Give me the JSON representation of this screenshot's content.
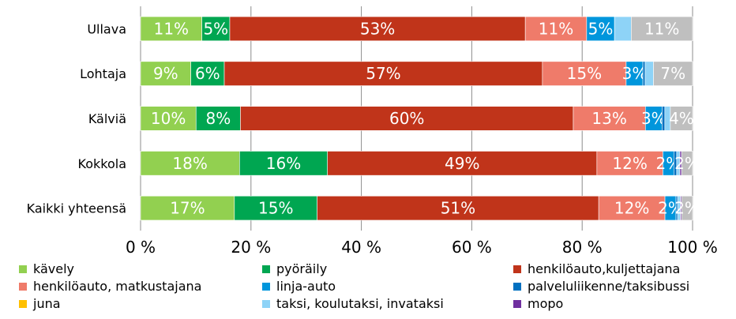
{
  "chart_data": {
    "type": "bar",
    "orientation": "horizontal",
    "stacked": "percent",
    "categories": [
      "Ullava",
      "Lohtaja",
      "Kälviä",
      "Kokkola",
      "Kaikki yhteensä"
    ],
    "series": [
      {
        "name": "kävely",
        "color": "#92D050",
        "values": [
          11,
          9,
          10,
          18,
          17
        ],
        "labels": [
          "11%",
          "9%",
          "10%",
          "18%",
          "17%"
        ]
      },
      {
        "name": "pyöräily",
        "color": "#00A651",
        "values": [
          5,
          6,
          8,
          16,
          15
        ],
        "labels": [
          "5%",
          "6%",
          "8%",
          "16%",
          "15%"
        ]
      },
      {
        "name": "henkilöauto,kuljettajana",
        "color": "#C0341A",
        "values": [
          53,
          57,
          60,
          49,
          51
        ],
        "labels": [
          "53%",
          "57%",
          "60%",
          "49%",
          "51%"
        ]
      },
      {
        "name": "henkilöauto, matkustajana",
        "color": "#EF7B6A",
        "values": [
          11,
          15,
          13,
          12,
          12
        ],
        "labels": [
          "11%",
          "15%",
          "13%",
          "12%",
          "12%"
        ]
      },
      {
        "name": "linja-auto",
        "color": "#0096DC",
        "values": [
          5,
          3,
          3,
          2,
          2
        ],
        "labels": [
          "5%",
          "3%",
          "3%",
          "2%",
          "2%"
        ]
      },
      {
        "name": "palveluliikenne/taksibussi",
        "color": "#0070C0",
        "values": [
          0,
          0.4,
          0.5,
          0.5,
          0.3
        ],
        "labels": [
          "",
          "",
          "",
          "",
          ""
        ]
      },
      {
        "name": "juna",
        "color": "#FFC000",
        "values": [
          0,
          0,
          0,
          0,
          0
        ],
        "labels": [
          "",
          "",
          "",
          "",
          ""
        ]
      },
      {
        "name": "taksi, koulutaksi, invataksi",
        "color": "#8ED3F7",
        "values": [
          3,
          1.5,
          1,
          0.6,
          0.5
        ],
        "labels": [
          "",
          "",
          "",
          "",
          ""
        ]
      },
      {
        "name": "mopo",
        "color": "#7030A0",
        "values": [
          0,
          0,
          0,
          0.3,
          0.2
        ],
        "labels": [
          "",
          "",
          "",
          "",
          ""
        ]
      },
      {
        "name": "",
        "color": "#BFBFBF",
        "values": [
          11,
          7,
          4,
          2,
          2
        ],
        "labels": [
          "11%",
          "7%",
          "4%",
          "2%",
          "2%"
        ]
      }
    ],
    "xaxis": {
      "min": 0,
      "max": 100,
      "ticks": [
        0,
        20,
        40,
        60,
        80,
        100
      ],
      "tick_labels": [
        "0 %",
        "20 %",
        "40 %",
        "60 %",
        "80 %",
        "100 %"
      ]
    },
    "grid": true,
    "legend_position": "bottom",
    "legend_order": [
      0,
      1,
      2,
      3,
      4,
      5,
      6,
      7,
      8
    ]
  }
}
